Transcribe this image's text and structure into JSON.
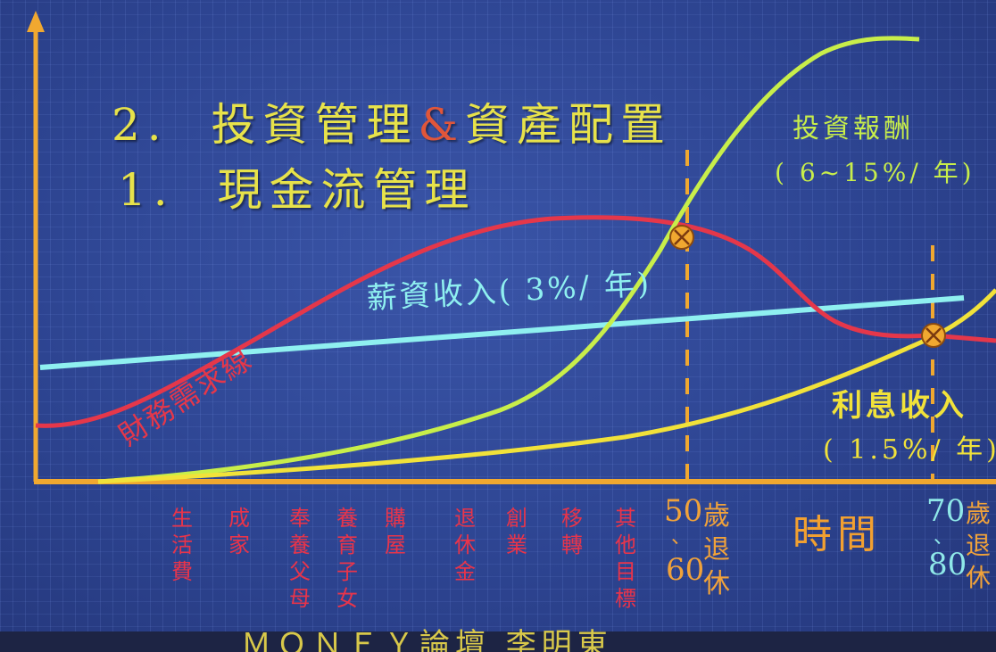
{
  "headings": {
    "line2_prefix": "2.",
    "line2_part1": "投資管理",
    "line2_amp": "&",
    "line2_part2": "資產配置",
    "line1_prefix": "1.",
    "line1_text": "現金流管理"
  },
  "labels": {
    "investment_return": "投資報酬",
    "investment_return_rate": "( 6~15%/ 年)",
    "salary_income": "薪資收入( 3%/ 年)",
    "financial_needs": "財務需求線",
    "interest_income": "利息收入",
    "interest_income_rate": "( 1.5%/ 年)"
  },
  "stages": [
    {
      "chars": [
        "生",
        "活",
        "費"
      ]
    },
    {
      "chars": [
        "成",
        "家"
      ]
    },
    {
      "chars": [
        "奉",
        "養",
        "父",
        "母"
      ]
    },
    {
      "chars": [
        "養",
        "育",
        "子",
        "女"
      ]
    },
    {
      "chars": [
        "購",
        "屋"
      ]
    },
    {
      "chars": [
        "退",
        "休",
        "金"
      ]
    },
    {
      "chars": [
        "創",
        "業"
      ]
    },
    {
      "chars": [
        "移",
        "轉"
      ]
    },
    {
      "chars": [
        "其",
        "他",
        "目",
        "標"
      ]
    }
  ],
  "ages": {
    "retire1_top": "50",
    "retire1_sep": "、",
    "retire1_bottom": "60",
    "retire1_suffix": [
      "歲",
      "退",
      "休"
    ],
    "retire2_top": "70",
    "retire2_sep": "、",
    "retire2_bottom": "80",
    "retire2_suffix": [
      "歲",
      "退",
      "休"
    ]
  },
  "time_axis_label": "時間",
  "footer": "ＭＯＮＥＹ論壇 李明東",
  "colors": {
    "axis": "#f0a830",
    "salary": "#8ff0f0",
    "financial_needs": "#e5374a",
    "investment": "#c8ee4a",
    "interest": "#f1e23a"
  }
}
